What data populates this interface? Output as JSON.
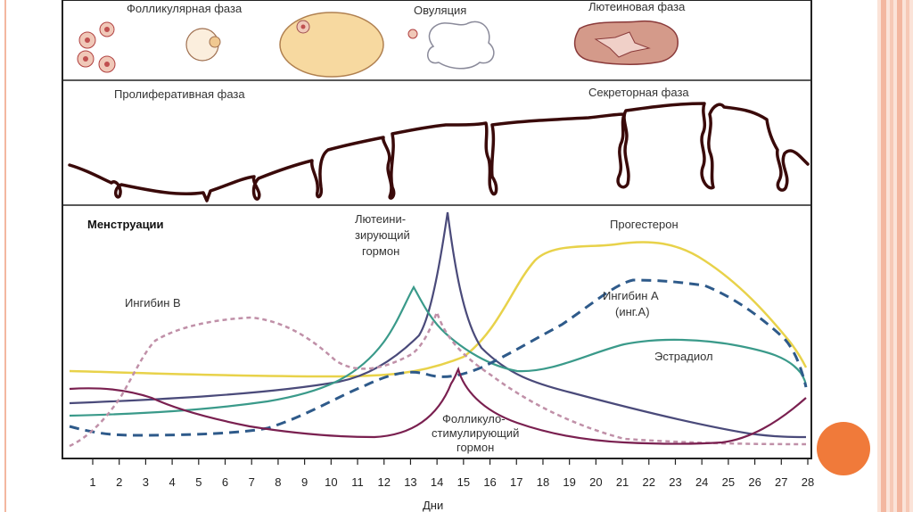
{
  "diagram": {
    "phases_top": {
      "follicular": "Фолликулярная фаза",
      "ovulation": "Овуляция",
      "luteal": "Лютеиновая фаза"
    },
    "endometrium": {
      "proliferative": "Пролиферативная фаза",
      "secretory": "Секреторная фаза"
    },
    "hormones": {
      "menstruation": "Менструации",
      "lh_line1": "Лютеини-",
      "lh_line2": "зирующий",
      "lh_line3": "гормон",
      "progesterone": "Прогестерон",
      "inhibin_b": "Ингибин В",
      "inhibin_a_line1": "Ингибин А",
      "inhibin_a_line2": "(инг.А)",
      "estradiol": "Эстрадиол",
      "fsh_line1": "Фолликуло-",
      "fsh_line2": "стимулирующий",
      "fsh_line3": "гормон"
    },
    "x_axis_label": "Дни",
    "days": [
      "1",
      "2",
      "3",
      "4",
      "5",
      "6",
      "7",
      "8",
      "9",
      "10",
      "11",
      "12",
      "13",
      "14",
      "15",
      "16",
      "17",
      "18",
      "19",
      "20",
      "21",
      "22",
      "23",
      "24",
      "25",
      "26",
      "27",
      "28"
    ]
  },
  "colors": {
    "progesterone": "#e8d24a",
    "lh": "#4a4a7a",
    "estradiol": "#3a9a8a",
    "inhibin_a": "#2e5a8a",
    "inhibin_b": "#c090a8",
    "fsh": "#7a2050",
    "endometrium": "#4a1010",
    "accent": "#f07a3a"
  }
}
